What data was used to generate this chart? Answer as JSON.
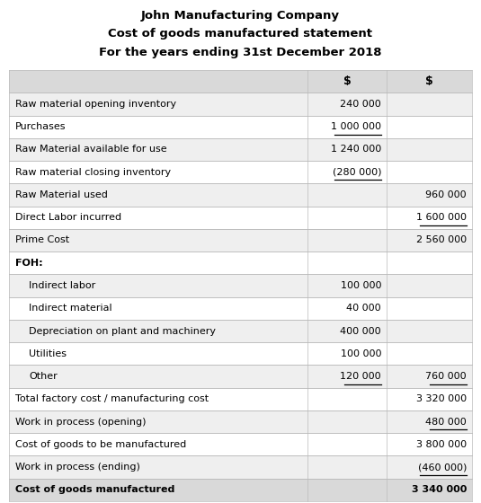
{
  "title1": "John Manufacturing Company",
  "title2": "Cost of goods manufactured statement",
  "title3": "For the years ending 31st December 2018",
  "col_header": "$",
  "rows": [
    {
      "label": "Raw material opening inventory",
      "col1": "240 000",
      "col2": "",
      "indent": false,
      "bold": false,
      "ul1": false,
      "ul2": false,
      "bg": "#efefef"
    },
    {
      "label": "Purchases",
      "col1": "1 000 000",
      "col2": "",
      "indent": false,
      "bold": false,
      "ul1": true,
      "ul2": false,
      "bg": "#ffffff"
    },
    {
      "label": "Raw Material available for use",
      "col1": "1 240 000",
      "col2": "",
      "indent": false,
      "bold": false,
      "ul1": false,
      "ul2": false,
      "bg": "#efefef"
    },
    {
      "label": "Raw material closing inventory",
      "col1": "(280 000)",
      "col2": "",
      "indent": false,
      "bold": false,
      "ul1": true,
      "ul2": false,
      "bg": "#ffffff"
    },
    {
      "label": "Raw Material used",
      "col1": "",
      "col2": "960 000",
      "indent": false,
      "bold": false,
      "ul1": false,
      "ul2": false,
      "bg": "#efefef"
    },
    {
      "label": "Direct Labor incurred",
      "col1": "",
      "col2": "1 600 000",
      "indent": false,
      "bold": false,
      "ul1": false,
      "ul2": true,
      "bg": "#ffffff"
    },
    {
      "label": "Prime Cost",
      "col1": "",
      "col2": "2 560 000",
      "indent": false,
      "bold": false,
      "ul1": false,
      "ul2": false,
      "bg": "#efefef"
    },
    {
      "label": "FOH:",
      "col1": "",
      "col2": "",
      "indent": false,
      "bold": true,
      "ul1": false,
      "ul2": false,
      "bg": "#ffffff"
    },
    {
      "label": "Indirect labor",
      "col1": "100 000",
      "col2": "",
      "indent": true,
      "bold": false,
      "ul1": false,
      "ul2": false,
      "bg": "#efefef"
    },
    {
      "label": "Indirect material",
      "col1": "40 000",
      "col2": "",
      "indent": true,
      "bold": false,
      "ul1": false,
      "ul2": false,
      "bg": "#ffffff"
    },
    {
      "label": "Depreciation on plant and machinery",
      "col1": "400 000",
      "col2": "",
      "indent": true,
      "bold": false,
      "ul1": false,
      "ul2": false,
      "bg": "#efefef"
    },
    {
      "label": "Utilities",
      "col1": "100 000",
      "col2": "",
      "indent": true,
      "bold": false,
      "ul1": false,
      "ul2": false,
      "bg": "#ffffff"
    },
    {
      "label": "Other",
      "col1": "120 000",
      "col2": "760 000",
      "indent": true,
      "bold": false,
      "ul1": true,
      "ul2": true,
      "bg": "#efefef"
    },
    {
      "label": "Total factory cost / manufacturing cost",
      "col1": "",
      "col2": "3 320 000",
      "indent": false,
      "bold": false,
      "ul1": false,
      "ul2": false,
      "bg": "#ffffff"
    },
    {
      "label": "Work in process (opening)",
      "col1": "",
      "col2": "480 000",
      "indent": false,
      "bold": false,
      "ul1": false,
      "ul2": true,
      "bg": "#efefef"
    },
    {
      "label": "Cost of goods to be manufactured",
      "col1": "",
      "col2": "3 800 000",
      "indent": false,
      "bold": false,
      "ul1": false,
      "ul2": false,
      "bg": "#ffffff"
    },
    {
      "label": "Work in process (ending)",
      "col1": "",
      "col2": "(460 000)",
      "indent": false,
      "bold": false,
      "ul1": false,
      "ul2": true,
      "bg": "#efefef"
    },
    {
      "label": "Cost of goods manufactured",
      "col1": "",
      "col2": "3 340 000",
      "indent": false,
      "bold": true,
      "ul1": false,
      "ul2": false,
      "bg": "#d9d9d9"
    }
  ],
  "bg_color": "#ffffff",
  "header_bg": "#d9d9d9",
  "border_color": "#bbbbbb",
  "fig_width": 5.35,
  "fig_height": 5.6,
  "dpi": 100
}
